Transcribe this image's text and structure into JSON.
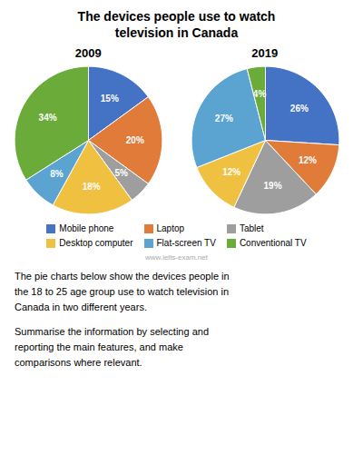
{
  "title": "The devices people use to watch\ntelevision in Canada",
  "chart_data": [
    {
      "type": "pie",
      "title": "2009",
      "categories": [
        "Mobile phone",
        "Laptop",
        "Tablet",
        "Desktop computer",
        "Flat-screen TV",
        "Conventional TV"
      ],
      "values": [
        15,
        20,
        5,
        18,
        8,
        34
      ],
      "value_labels": [
        "15%",
        "20%",
        "5%",
        "18%",
        "8%",
        "34%"
      ],
      "colors": [
        "#4472C4",
        "#E07B39",
        "#9E9E9E",
        "#F0C040",
        "#5BA3D0",
        "#6AAB3A"
      ],
      "data_labels": true,
      "legend": "bottom"
    },
    {
      "type": "pie",
      "title": "2019",
      "categories": [
        "Mobile phone",
        "Laptop",
        "Tablet",
        "Desktop computer",
        "Flat-screen TV",
        "Conventional TV"
      ],
      "values": [
        26,
        12,
        19,
        12,
        27,
        4
      ],
      "value_labels": [
        "26%",
        "12%",
        "19%",
        "12%",
        "27%",
        "4%"
      ],
      "colors": [
        "#4472C4",
        "#E07B39",
        "#9E9E9E",
        "#F0C040",
        "#5BA3D0",
        "#6AAB3A"
      ],
      "data_labels": true
    }
  ],
  "annotations": [
    "www.ielts-exam.net",
    "The pie charts below show the devices people in\nthe 18 to 25 age group use to watch television in\nCanada in two different years.",
    "Summarise the information by selecting and\nreporting the main features, and make\ncomparisons where relevant."
  ]
}
